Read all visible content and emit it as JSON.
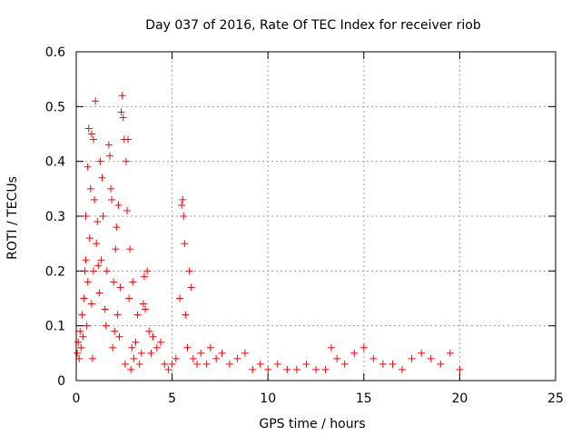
{
  "chart_data": {
    "type": "scatter",
    "title": "Day 037 of 2016, Rate Of TEC Index for receiver riob",
    "xlabel": "GPS time / hours",
    "ylabel": "ROTI / TECUs",
    "xlim": [
      0,
      25
    ],
    "ylim": [
      0,
      0.6
    ],
    "x_ticks": [
      "0",
      "5",
      "10",
      "15",
      "20",
      "25"
    ],
    "y_ticks": [
      "0",
      "0.1",
      "0.2",
      "0.3",
      "0.4",
      "0.5",
      "0.6"
    ],
    "grid": true,
    "marker": "+",
    "series_color": "#ff0000",
    "series": [
      {
        "name": "ROTI",
        "points": [
          [
            0.05,
            0.05
          ],
          [
            0.1,
            0.07
          ],
          [
            0.15,
            0.04
          ],
          [
            0.2,
            0.09
          ],
          [
            0.25,
            0.06
          ],
          [
            0.3,
            0.12
          ],
          [
            0.35,
            0.08
          ],
          [
            0.4,
            0.15
          ],
          [
            0.45,
            0.2
          ],
          [
            0.5,
            0.22
          ],
          [
            0.5,
            0.3
          ],
          [
            0.55,
            0.1
          ],
          [
            0.6,
            0.18
          ],
          [
            0.6,
            0.39
          ],
          [
            0.65,
            0.46
          ],
          [
            0.7,
            0.26
          ],
          [
            0.75,
            0.35
          ],
          [
            0.8,
            0.14
          ],
          [
            0.8,
            0.45
          ],
          [
            0.85,
            0.04
          ],
          [
            0.9,
            0.2
          ],
          [
            0.9,
            0.44
          ],
          [
            0.95,
            0.33
          ],
          [
            1.0,
            0.51
          ],
          [
            1.05,
            0.25
          ],
          [
            1.1,
            0.29
          ],
          [
            1.15,
            0.21
          ],
          [
            1.2,
            0.16
          ],
          [
            1.25,
            0.4
          ],
          [
            1.3,
            0.22
          ],
          [
            1.35,
            0.37
          ],
          [
            1.4,
            0.3
          ],
          [
            1.5,
            0.13
          ],
          [
            1.55,
            0.1
          ],
          [
            1.6,
            0.2
          ],
          [
            1.7,
            0.43
          ],
          [
            1.75,
            0.41
          ],
          [
            1.8,
            0.35
          ],
          [
            1.85,
            0.33
          ],
          [
            1.9,
            0.06
          ],
          [
            1.95,
            0.18
          ],
          [
            2.0,
            0.09
          ],
          [
            2.05,
            0.24
          ],
          [
            2.1,
            0.28
          ],
          [
            2.15,
            0.12
          ],
          [
            2.2,
            0.32
          ],
          [
            2.25,
            0.08
          ],
          [
            2.3,
            0.17
          ],
          [
            2.35,
            0.49
          ],
          [
            2.4,
            0.52
          ],
          [
            2.45,
            0.48
          ],
          [
            2.5,
            0.44
          ],
          [
            2.55,
            0.03
          ],
          [
            2.6,
            0.4
          ],
          [
            2.65,
            0.31
          ],
          [
            2.7,
            0.44
          ],
          [
            2.75,
            0.15
          ],
          [
            2.8,
            0.24
          ],
          [
            2.85,
            0.02
          ],
          [
            2.9,
            0.06
          ],
          [
            2.95,
            0.18
          ],
          [
            3.0,
            0.04
          ],
          [
            3.1,
            0.07
          ],
          [
            3.2,
            0.12
          ],
          [
            3.3,
            0.03
          ],
          [
            3.4,
            0.05
          ],
          [
            3.5,
            0.14
          ],
          [
            3.55,
            0.19
          ],
          [
            3.6,
            0.13
          ],
          [
            3.7,
            0.2
          ],
          [
            3.8,
            0.09
          ],
          [
            3.9,
            0.05
          ],
          [
            4.0,
            0.08
          ],
          [
            4.2,
            0.06
          ],
          [
            4.4,
            0.07
          ],
          [
            4.6,
            0.03
          ],
          [
            4.8,
            0.02
          ],
          [
            5.0,
            0.03
          ],
          [
            5.2,
            0.04
          ],
          [
            5.4,
            0.15
          ],
          [
            5.5,
            0.32
          ],
          [
            5.55,
            0.33
          ],
          [
            5.6,
            0.3
          ],
          [
            5.65,
            0.25
          ],
          [
            5.7,
            0.12
          ],
          [
            5.8,
            0.06
          ],
          [
            5.9,
            0.2
          ],
          [
            6.0,
            0.17
          ],
          [
            6.1,
            0.04
          ],
          [
            6.3,
            0.03
          ],
          [
            6.5,
            0.05
          ],
          [
            6.8,
            0.03
          ],
          [
            7.0,
            0.06
          ],
          [
            7.3,
            0.04
          ],
          [
            7.6,
            0.05
          ],
          [
            8.0,
            0.03
          ],
          [
            8.4,
            0.04
          ],
          [
            8.8,
            0.05
          ],
          [
            9.2,
            0.02
          ],
          [
            9.6,
            0.03
          ],
          [
            10.0,
            0.02
          ],
          [
            10.5,
            0.03
          ],
          [
            11.0,
            0.02
          ],
          [
            11.5,
            0.02
          ],
          [
            12.0,
            0.03
          ],
          [
            12.5,
            0.02
          ],
          [
            13.0,
            0.02
          ],
          [
            13.3,
            0.06
          ],
          [
            13.6,
            0.04
          ],
          [
            14.0,
            0.03
          ],
          [
            14.5,
            0.05
          ],
          [
            15.0,
            0.06
          ],
          [
            15.5,
            0.04
          ],
          [
            16.0,
            0.03
          ],
          [
            16.5,
            0.03
          ],
          [
            17.0,
            0.02
          ],
          [
            17.5,
            0.04
          ],
          [
            18.0,
            0.05
          ],
          [
            18.5,
            0.04
          ],
          [
            19.0,
            0.03
          ],
          [
            19.5,
            0.05
          ],
          [
            20.0,
            0.02
          ]
        ]
      }
    ]
  }
}
